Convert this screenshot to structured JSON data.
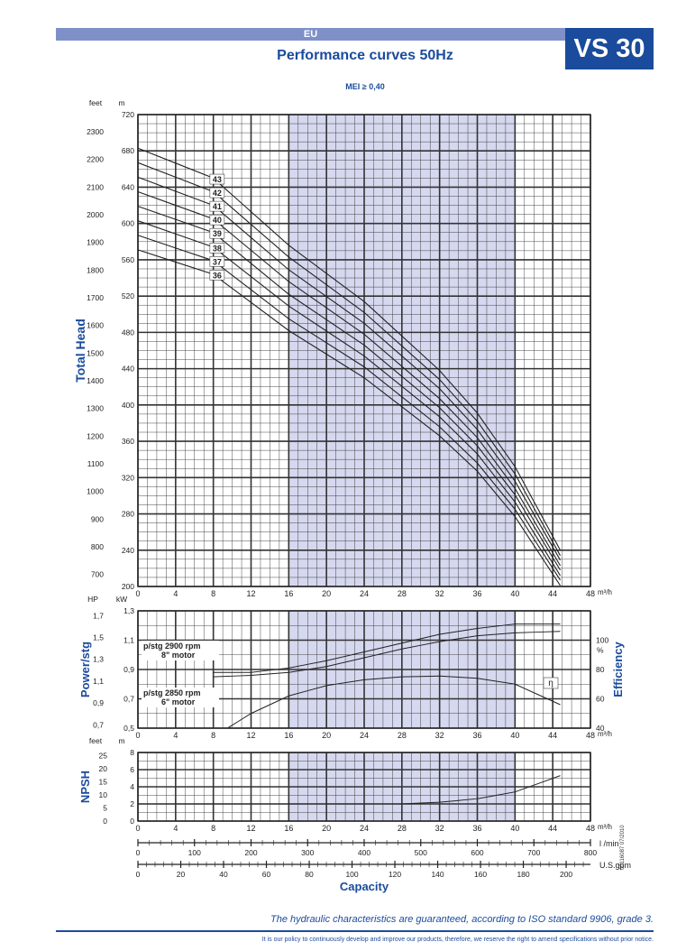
{
  "header": {
    "region": "EU",
    "model": "VS 30",
    "title": "Performance curves 50Hz",
    "mei": "MEI ≥ 0,40"
  },
  "colors": {
    "brand": "#1a4b9c",
    "band": "#7f90c9",
    "shade": "#d5d8ee",
    "curve": "#222222",
    "grid": "#333333"
  },
  "chart_data": [
    {
      "type": "line",
      "panel": "head",
      "ylabel": "Total Head",
      "units": {
        "left": "feet",
        "right": "m",
        "x": "m³/h"
      },
      "xlim": [
        0,
        48
      ],
      "ylim": [
        200,
        720
      ],
      "x_ticks": [
        0,
        4,
        8,
        12,
        16,
        20,
        24,
        28,
        32,
        36,
        40,
        44,
        48
      ],
      "y_ticks_m": [
        200,
        240,
        280,
        320,
        360,
        400,
        440,
        480,
        520,
        560,
        600,
        640,
        680,
        720
      ],
      "y_ticks_feet": [
        700,
        800,
        900,
        1000,
        1100,
        1200,
        1300,
        1400,
        1500,
        1600,
        1700,
        1800,
        1900,
        2000,
        2100,
        2200,
        2300
      ],
      "recommended_range": [
        16,
        40
      ],
      "series": [
        {
          "name": "43",
          "x": [
            0,
            8,
            16,
            24,
            32,
            36,
            40,
            44.8
          ],
          "y": [
            683,
            650,
            576,
            514,
            438,
            391,
            332,
            240
          ]
        },
        {
          "name": "42",
          "x": [
            0,
            8,
            16,
            24,
            32,
            36,
            40,
            44.8
          ],
          "y": [
            667,
            635,
            563,
            502,
            428,
            382,
            324,
            234
          ]
        },
        {
          "name": "41",
          "x": [
            0,
            8,
            16,
            24,
            32,
            36,
            40,
            44.8
          ],
          "y": [
            651,
            620,
            549,
            490,
            418,
            373,
            316,
            229
          ]
        },
        {
          "name": "40",
          "x": [
            0,
            8,
            16,
            24,
            32,
            36,
            40,
            44.8
          ],
          "y": [
            635,
            605,
            536,
            478,
            407,
            364,
            308,
            223
          ]
        },
        {
          "name": "39",
          "x": [
            0,
            8,
            16,
            24,
            32,
            36,
            40,
            44.8
          ],
          "y": [
            619,
            590,
            522,
            466,
            397,
            355,
            301,
            218
          ]
        },
        {
          "name": "38",
          "x": [
            0,
            8,
            16,
            24,
            32,
            36,
            40,
            44.8
          ],
          "y": [
            603,
            574,
            509,
            454,
            387,
            346,
            293,
            212
          ]
        },
        {
          "name": "37",
          "x": [
            0,
            8,
            16,
            24,
            32,
            36,
            40,
            44.8
          ],
          "y": [
            587,
            559,
            495,
            442,
            376,
            336,
            285,
            207
          ]
        },
        {
          "name": "36",
          "x": [
            0,
            8,
            16,
            24,
            32,
            36,
            40,
            44.8
          ],
          "y": [
            571,
            544,
            482,
            430,
            366,
            327,
            277,
            201
          ]
        }
      ]
    },
    {
      "type": "line",
      "panel": "power",
      "ylabel": "Power/stg",
      "y2label": "Efficiency",
      "units": {
        "left": "HP",
        "right": "kW",
        "efficiency": "%",
        "x": "m³/h"
      },
      "xlim": [
        0,
        48
      ],
      "ylim": [
        0.5,
        1.3
      ],
      "x_ticks": [
        0,
        4,
        8,
        12,
        16,
        20,
        24,
        28,
        32,
        36,
        40,
        44,
        48
      ],
      "y_ticks_kw": [
        0.5,
        0.7,
        0.9,
        1.1,
        1.3
      ],
      "y_ticks_hp": [
        0.7,
        0.9,
        1.1,
        1.3,
        1.5,
        1.7
      ],
      "y2_ticks": [
        40,
        60,
        80,
        100
      ],
      "y2lim": [
        40,
        120
      ],
      "recommended_range": [
        16,
        40
      ],
      "series": [
        {
          "name": "p/stg 2900 rpm 8\" motor",
          "x": [
            8,
            12,
            16,
            20,
            24,
            28,
            32,
            36,
            40,
            44.8
          ],
          "y": [
            0.88,
            0.88,
            0.91,
            0.96,
            1.02,
            1.08,
            1.14,
            1.18,
            1.21,
            1.21
          ]
        },
        {
          "name": "p/stg 2850 rpm 6\" motor",
          "x": [
            8,
            12,
            16,
            20,
            24,
            28,
            32,
            36,
            40,
            44.8
          ],
          "y": [
            0.85,
            0.86,
            0.88,
            0.92,
            0.98,
            1.04,
            1.09,
            1.13,
            1.15,
            1.16
          ]
        },
        {
          "name": "η",
          "axis": "efficiency",
          "x": [
            9.5,
            12,
            16,
            20,
            24,
            28,
            32,
            36,
            40,
            44.8
          ],
          "y": [
            40,
            50,
            62,
            69,
            73,
            75,
            75.5,
            74,
            70,
            56
          ]
        }
      ],
      "labels": {
        "motor8_rpm": "p/stg 2900 rpm",
        "motor8_type": "8\" motor",
        "motor6_rpm": "p/stg 2850 rpm",
        "motor6_type": "6\" motor",
        "eta": "η"
      }
    },
    {
      "type": "line",
      "panel": "npsh",
      "ylabel": "NPSH",
      "units": {
        "left": "feet",
        "right": "m",
        "x": "m³/h"
      },
      "xlim": [
        0,
        48
      ],
      "ylim": [
        0,
        8
      ],
      "x_ticks": [
        0,
        4,
        8,
        12,
        16,
        20,
        24,
        28,
        32,
        36,
        40,
        44,
        48
      ],
      "y_ticks_m": [
        0,
        2,
        4,
        6,
        8
      ],
      "y_ticks_feet": [
        0,
        5,
        10,
        15,
        20,
        25
      ],
      "recommended_range": [
        16,
        40
      ],
      "series": [
        {
          "name": "NPSH",
          "x": [
            0,
            28,
            32,
            36,
            40,
            44.8
          ],
          "y": [
            2.0,
            2.0,
            2.2,
            2.6,
            3.4,
            5.3
          ]
        }
      ]
    }
  ],
  "capacity_axes": {
    "lmin_label": "l /min",
    "lmin_ticks": [
      0,
      100,
      200,
      300,
      400,
      500,
      600,
      700,
      800
    ],
    "gpm_label": "U.S.gpm",
    "gpm_ticks": [
      0,
      20,
      40,
      60,
      80,
      100,
      120,
      140,
      160,
      180,
      200
    ],
    "caption": "Capacity"
  },
  "footer": {
    "note": "The hydraulic characteristics are guaranteed, according to ISO standard 9906, grade 3.",
    "disclaimer": "It is our policy to continuously develop and improve our products, therefore, we reserve the right to amend specifications without prior notice.",
    "docref": "00116087  07/2010"
  }
}
